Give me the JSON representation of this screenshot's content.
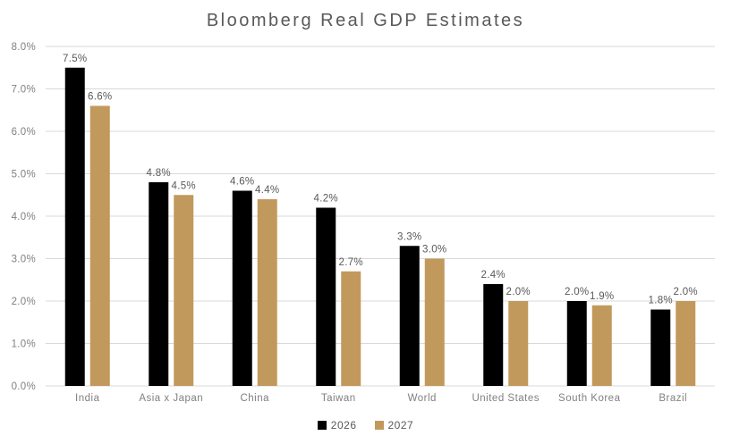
{
  "chart_data": {
    "type": "bar",
    "title": "Bloomberg Real GDP Estimates",
    "categories": [
      "India",
      "Asia x Japan",
      "China",
      "Taiwan",
      "World",
      "United States",
      "South Korea",
      "Brazil"
    ],
    "series": [
      {
        "name": "2026",
        "color": "#000000",
        "values": [
          7.5,
          4.8,
          4.6,
          4.2,
          3.3,
          2.4,
          2.0,
          1.8
        ]
      },
      {
        "name": "2027",
        "color": "#C2995C",
        "values": [
          6.6,
          4.5,
          4.4,
          2.7,
          3.0,
          2.0,
          1.9,
          2.0
        ]
      }
    ],
    "xlabel": "",
    "ylabel": "",
    "ylim": [
      0,
      8
    ],
    "ytick_step": 1,
    "ytick_labels": [
      "0.0%",
      "1.0%",
      "2.0%",
      "3.0%",
      "4.0%",
      "5.0%",
      "6.0%",
      "7.0%",
      "8.0%"
    ],
    "data_labels": [
      "7.5%",
      "4.8%",
      "4.6%",
      "4.2%",
      "3.3%",
      "2.4%",
      "2.0%",
      "1.8%",
      "6.6%",
      "4.5%",
      "4.4%",
      "2.7%",
      "3.0%",
      "2.0%",
      "1.9%",
      "2.0%"
    ],
    "grid": "horizontal",
    "legend_position": "bottom"
  },
  "palette": {
    "background": "#FFFFFF",
    "gridline": "#D9D9D9",
    "title_text": "#595959",
    "axis_text": "#808080",
    "data_label_text": "#595959",
    "series_2026": "#000000",
    "series_2027": "#C2995C"
  }
}
